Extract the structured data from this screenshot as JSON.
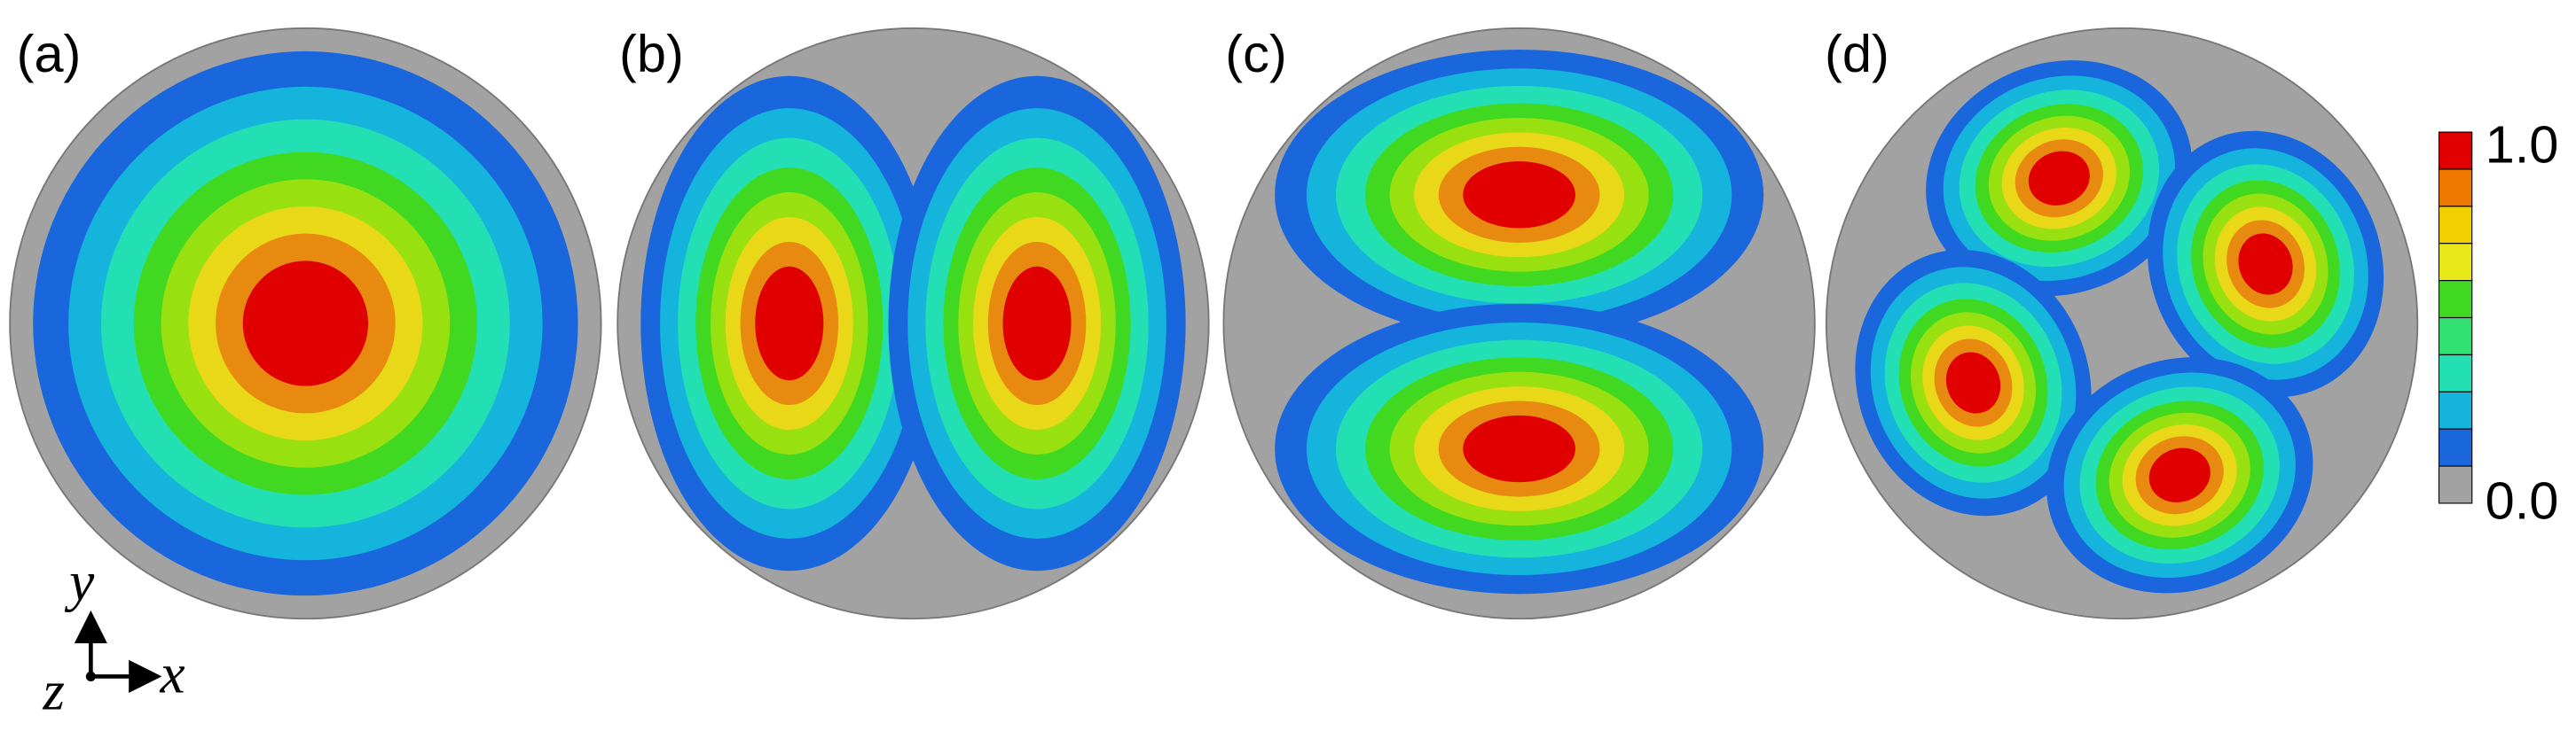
{
  "panels": [
    {
      "label": "(a)"
    },
    {
      "label": "(b)"
    },
    {
      "label": "(c)"
    },
    {
      "label": "(d)"
    }
  ],
  "colorbar": {
    "max_label": "1.0",
    "min_label": "0.0"
  },
  "axes": {
    "y": "y",
    "x": "x",
    "z": "z"
  }
}
